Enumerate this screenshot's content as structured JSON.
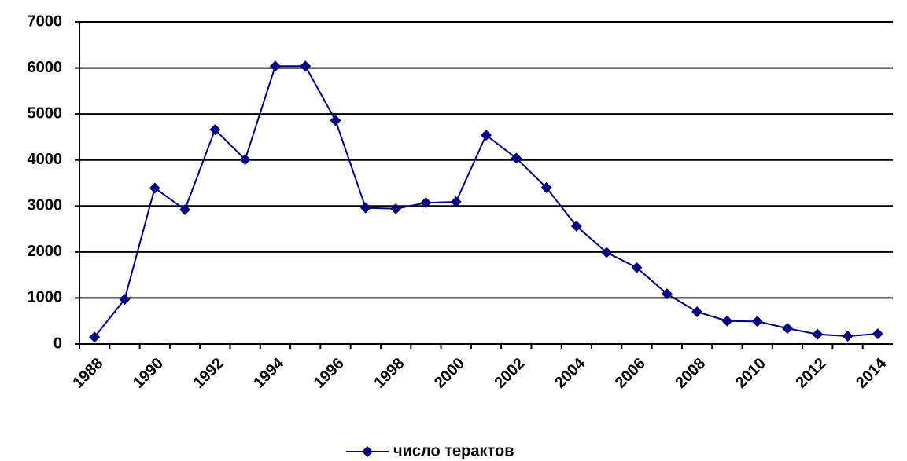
{
  "chart_data": {
    "type": "line",
    "categories": [
      "1988",
      null,
      "1990",
      null,
      "1992",
      null,
      "1994",
      null,
      "1996",
      null,
      "1998",
      null,
      "2000",
      null,
      "2002",
      null,
      "2004",
      null,
      "2006",
      null,
      "2008",
      null,
      "2010",
      null,
      "2012",
      null,
      "2014"
    ],
    "series": [
      {
        "name": "число терактов",
        "color": "#000080",
        "values": [
          150,
          970,
          3390,
          2920,
          4660,
          4010,
          6040,
          6040,
          4860,
          2960,
          2940,
          3070,
          3090,
          4540,
          4040,
          3400,
          2560,
          1990,
          1660,
          1090,
          700,
          500,
          490,
          340,
          210,
          170,
          220
        ]
      }
    ],
    "ylim": [
      0,
      7000
    ],
    "yticks": [
      0,
      1000,
      2000,
      3000,
      4000,
      5000,
      6000,
      7000
    ],
    "grid": true,
    "legend": "bottom"
  }
}
